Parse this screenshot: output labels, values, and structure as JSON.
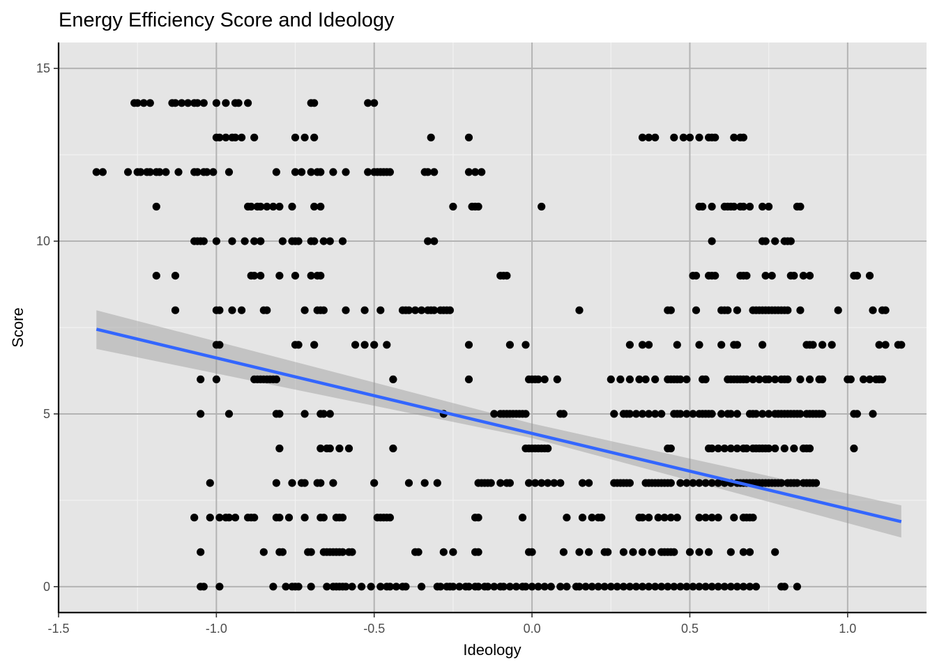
{
  "chart_data": {
    "type": "scatter",
    "title": "Energy Efficiency Score and Ideology",
    "xlabel": "Ideology",
    "ylabel": "Score",
    "xlim": [
      -1.5,
      1.25
    ],
    "ylim": [
      -0.75,
      15.75
    ],
    "x_ticks": [
      -1.5,
      -1.0,
      -0.5,
      0.0,
      0.5,
      1.0
    ],
    "x_tick_labels": [
      "-1.5",
      "-1.0",
      "-0.5",
      "0.0",
      "0.5",
      "1.0"
    ],
    "y_ticks": [
      0,
      5,
      10,
      15
    ],
    "y_tick_labels": [
      "0",
      "5",
      "10",
      "15"
    ],
    "grid": true,
    "colors": {
      "panel": "#e5e5e5",
      "grid_major": "#b3b3b3",
      "grid_minor": "#f2f2f2",
      "points": "#000000",
      "fit_line": "#3366ff",
      "ribbon": "#999999"
    },
    "points": {
      "14": [
        -1.26,
        -1.25,
        -1.23,
        -1.21,
        -1.14,
        -1.13,
        -1.11,
        -1.09,
        -1.07,
        -1.06,
        -1.04,
        -1.0,
        -0.97,
        -0.94,
        -0.93,
        -0.9,
        -0.7,
        -0.69,
        -0.52,
        -0.5
      ],
      "13": [
        -1.0,
        -0.99,
        -0.97,
        -0.95,
        -0.94,
        -0.92,
        -0.88,
        -0.75,
        -0.72,
        -0.69,
        -0.32,
        -0.2,
        0.35,
        0.37,
        0.39,
        0.45,
        0.48,
        0.5,
        0.53,
        0.56,
        0.57,
        0.58,
        0.64,
        0.66,
        0.67
      ],
      "12": [
        -1.38,
        -1.36,
        -1.28,
        -1.25,
        -1.24,
        -1.22,
        -1.21,
        -1.19,
        -1.18,
        -1.16,
        -1.12,
        -1.07,
        -1.06,
        -1.04,
        -1.03,
        -1.01,
        -0.96,
        -0.81,
        -0.75,
        -0.73,
        -0.7,
        -0.68,
        -0.67,
        -0.63,
        -0.59,
        -0.52,
        -0.5,
        -0.49,
        -0.48,
        -0.47,
        -0.46,
        -0.45,
        -0.34,
        -0.33,
        -0.31,
        -0.2,
        -0.18,
        -0.16
      ],
      "11": [
        -1.19,
        -0.9,
        -0.89,
        -0.87,
        -0.86,
        -0.84,
        -0.82,
        -0.8,
        -0.76,
        -0.69,
        -0.67,
        -0.25,
        -0.19,
        -0.18,
        -0.17,
        0.03,
        0.53,
        0.54,
        0.57,
        0.61,
        0.62,
        0.63,
        0.64,
        0.66,
        0.67,
        0.69,
        0.73,
        0.75,
        0.84,
        0.85
      ],
      "10": [
        -1.07,
        -1.06,
        -1.05,
        -1.04,
        -1.0,
        -0.95,
        -0.91,
        -0.88,
        -0.86,
        -0.86,
        -0.79,
        -0.76,
        -0.75,
        -0.74,
        -0.7,
        -0.69,
        -0.66,
        -0.64,
        -0.6,
        -0.33,
        -0.31,
        0.57,
        0.73,
        0.74,
        0.77,
        0.8,
        0.81,
        0.82
      ],
      "9": [
        -1.19,
        -1.13,
        -0.89,
        -0.88,
        -0.86,
        -0.8,
        -0.75,
        -0.7,
        -0.68,
        -0.67,
        -0.1,
        -0.09,
        -0.08,
        0.51,
        0.52,
        0.56,
        0.57,
        0.58,
        0.66,
        0.67,
        0.68,
        0.74,
        0.76,
        0.82,
        0.83,
        0.86,
        0.88,
        1.02,
        1.03,
        1.07
      ],
      "8": [
        -1.13,
        -1.0,
        -0.99,
        -0.95,
        -0.92,
        -0.85,
        -0.84,
        -0.72,
        -0.68,
        -0.67,
        -0.66,
        -0.59,
        -0.53,
        -0.48,
        -0.41,
        -0.4,
        -0.39,
        -0.37,
        -0.35,
        -0.33,
        -0.32,
        -0.31,
        -0.29,
        -0.28,
        -0.27,
        -0.26,
        0.15,
        0.43,
        0.44,
        0.52,
        0.6,
        0.61,
        0.62,
        0.65,
        0.7,
        0.71,
        0.72,
        0.73,
        0.74,
        0.75,
        0.76,
        0.77,
        0.78,
        0.79,
        0.8,
        0.81,
        0.85,
        0.97,
        1.08,
        1.11,
        1.12
      ],
      "7": [
        -1.0,
        -0.99,
        -0.75,
        -0.74,
        -0.69,
        -0.56,
        -0.53,
        -0.5,
        -0.46,
        -0.2,
        -0.07,
        -0.02,
        0.31,
        0.35,
        0.37,
        0.46,
        0.53,
        0.6,
        0.64,
        0.65,
        0.73,
        0.87,
        0.88,
        0.89,
        0.92,
        0.95,
        1.1,
        1.12,
        1.16,
        1.17
      ],
      "6": [
        -1.05,
        -1.0,
        -0.88,
        -0.87,
        -0.86,
        -0.85,
        -0.84,
        -0.83,
        -0.82,
        -0.81,
        -0.44,
        -0.2,
        -0.01,
        0.0,
        0.01,
        0.02,
        0.04,
        0.08,
        0.25,
        0.28,
        0.31,
        0.34,
        0.36,
        0.39,
        0.43,
        0.44,
        0.45,
        0.46,
        0.47,
        0.49,
        0.54,
        0.55,
        0.62,
        0.63,
        0.64,
        0.65,
        0.66,
        0.67,
        0.68,
        0.7,
        0.72,
        0.74,
        0.75,
        0.77,
        0.79,
        0.8,
        0.81,
        0.85,
        0.88,
        0.91,
        0.92,
        1.0,
        1.01,
        1.05,
        1.07,
        1.09,
        1.1,
        1.11
      ],
      "5": [
        -1.05,
        -0.96,
        -0.81,
        -0.8,
        -0.72,
        -0.67,
        -0.66,
        -0.64,
        -0.28,
        -0.12,
        -0.1,
        -0.09,
        -0.08,
        -0.07,
        -0.06,
        -0.05,
        -0.04,
        -0.03,
        -0.02,
        0.09,
        0.1,
        0.26,
        0.29,
        0.3,
        0.31,
        0.33,
        0.35,
        0.37,
        0.39,
        0.41,
        0.45,
        0.46,
        0.47,
        0.49,
        0.51,
        0.53,
        0.54,
        0.55,
        0.56,
        0.57,
        0.6,
        0.62,
        0.63,
        0.65,
        0.69,
        0.7,
        0.71,
        0.73,
        0.75,
        0.77,
        0.78,
        0.79,
        0.8,
        0.81,
        0.82,
        0.83,
        0.84,
        0.85,
        0.87,
        0.88,
        0.89,
        0.9,
        0.91,
        0.92,
        1.02,
        1.03,
        1.08
      ],
      "4": [
        -0.8,
        -0.67,
        -0.65,
        -0.64,
        -0.61,
        -0.58,
        -0.44,
        -0.02,
        -0.01,
        0.0,
        0.01,
        0.02,
        0.03,
        0.04,
        0.05,
        0.43,
        0.44,
        0.56,
        0.57,
        0.59,
        0.61,
        0.63,
        0.65,
        0.67,
        0.68,
        0.7,
        0.71,
        0.72,
        0.73,
        0.74,
        0.75,
        0.77,
        0.8,
        0.83,
        0.86,
        0.87,
        0.88,
        1.02
      ],
      "3": [
        -1.02,
        -0.81,
        -0.76,
        -0.73,
        -0.72,
        -0.68,
        -0.67,
        -0.63,
        -0.5,
        -0.39,
        -0.34,
        -0.3,
        -0.17,
        -0.16,
        -0.15,
        -0.14,
        -0.13,
        -0.1,
        -0.08,
        -0.07,
        -0.01,
        0.01,
        0.03,
        0.05,
        0.07,
        0.09,
        0.16,
        0.18,
        0.26,
        0.27,
        0.28,
        0.29,
        0.3,
        0.31,
        0.36,
        0.37,
        0.38,
        0.39,
        0.4,
        0.41,
        0.42,
        0.43,
        0.44,
        0.47,
        0.49,
        0.51,
        0.53,
        0.55,
        0.57,
        0.59,
        0.61,
        0.63,
        0.65,
        0.66,
        0.67,
        0.68,
        0.69,
        0.7,
        0.71,
        0.72,
        0.73,
        0.74,
        0.75,
        0.76,
        0.77,
        0.78,
        0.79,
        0.81,
        0.82,
        0.83,
        0.84,
        0.86,
        0.87,
        0.88,
        0.89,
        0.9
      ],
      "2": [
        -1.07,
        -1.02,
        -0.99,
        -0.97,
        -0.96,
        -0.94,
        -0.9,
        -0.89,
        -0.88,
        -0.81,
        -0.8,
        -0.77,
        -0.72,
        -0.67,
        -0.66,
        -0.62,
        -0.61,
        -0.6,
        -0.49,
        -0.48,
        -0.47,
        -0.46,
        -0.45,
        -0.18,
        -0.17,
        -0.03,
        0.11,
        0.16,
        0.19,
        0.21,
        0.22,
        0.34,
        0.35,
        0.37,
        0.4,
        0.42,
        0.44,
        0.46,
        0.53,
        0.55,
        0.57,
        0.59,
        0.64,
        0.67,
        0.68,
        0.69,
        0.7
      ],
      "1": [
        -1.05,
        -0.85,
        -0.8,
        -0.79,
        -0.71,
        -0.7,
        -0.66,
        -0.65,
        -0.64,
        -0.63,
        -0.62,
        -0.61,
        -0.6,
        -0.58,
        -0.57,
        -0.37,
        -0.36,
        -0.28,
        -0.25,
        -0.18,
        -0.17,
        -0.01,
        0.0,
        0.1,
        0.15,
        0.18,
        0.23,
        0.24,
        0.29,
        0.32,
        0.35,
        0.38,
        0.41,
        0.42,
        0.43,
        0.44,
        0.45,
        0.5,
        0.53,
        0.56,
        0.63,
        0.67,
        0.69,
        0.77
      ],
      "0": [
        -1.05,
        -1.04,
        -0.99,
        -0.82,
        -0.78,
        -0.76,
        -0.75,
        -0.74,
        -0.7,
        -0.65,
        -0.63,
        -0.62,
        -0.61,
        -0.6,
        -0.59,
        -0.57,
        -0.54,
        -0.51,
        -0.48,
        -0.46,
        -0.45,
        -0.43,
        -0.41,
        -0.4,
        -0.35,
        -0.3,
        -0.29,
        -0.27,
        -0.26,
        -0.25,
        -0.23,
        -0.21,
        -0.2,
        -0.18,
        -0.17,
        -0.15,
        -0.14,
        -0.12,
        -0.1,
        -0.09,
        -0.07,
        -0.05,
        -0.03,
        -0.02,
        0.0,
        0.02,
        0.04,
        0.06,
        0.09,
        0.11,
        0.14,
        0.15,
        0.17,
        0.19,
        0.21,
        0.23,
        0.25,
        0.27,
        0.29,
        0.31,
        0.33,
        0.35,
        0.37,
        0.39,
        0.41,
        0.43,
        0.45,
        0.47,
        0.49,
        0.51,
        0.53,
        0.55,
        0.57,
        0.59,
        0.61,
        0.63,
        0.65,
        0.67,
        0.69,
        0.71,
        0.79,
        0.8,
        0.84
      ]
    },
    "fit": {
      "method": "linear",
      "x": [
        -1.38,
        1.17
      ],
      "y": [
        7.45,
        1.88
      ],
      "ci_upper": [
        8.0,
        2.35
      ],
      "ci_lower": [
        6.88,
        1.42
      ],
      "ci_mid": {
        "x": 0.0,
        "upper": 4.72,
        "lower": 4.3
      }
    }
  }
}
